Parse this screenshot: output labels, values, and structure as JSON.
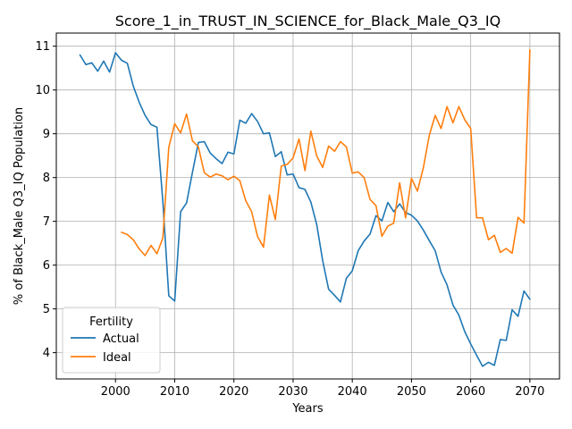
{
  "chart_data": {
    "type": "line",
    "title": "Score_1_in_TRUST_IN_SCIENCE_for_Black_Male_Q3_IQ",
    "xlabel": "Years",
    "ylabel": "% of Black_Male Q3_IQ Population",
    "xlim": [
      1990,
      2075
    ],
    "ylim": [
      3.4,
      11.3
    ],
    "xticks": [
      2000,
      2010,
      2020,
      2030,
      2040,
      2050,
      2060,
      2070
    ],
    "yticks": [
      4,
      5,
      6,
      7,
      8,
      9,
      10,
      11
    ],
    "grid": true,
    "legend": {
      "title": "Fertility",
      "position": "lower-left"
    },
    "series": [
      {
        "name": "Actual",
        "color": "#1f77b4",
        "x": [
          1994,
          1995,
          1996,
          1997,
          1998,
          1999,
          2000,
          2001,
          2002,
          2003,
          2004,
          2005,
          2006,
          2007,
          2008,
          2009,
          2010,
          2011,
          2012,
          2013,
          2014,
          2015,
          2016,
          2017,
          2018,
          2019,
          2020,
          2021,
          2022,
          2023,
          2024,
          2025,
          2026,
          2027,
          2028,
          2029,
          2030,
          2031,
          2032,
          2033,
          2034,
          2035,
          2036,
          2037,
          2038,
          2039,
          2040,
          2041,
          2042,
          2043,
          2044,
          2045,
          2046,
          2047,
          2048,
          2049,
          2050,
          2051,
          2052,
          2053,
          2054,
          2055,
          2056,
          2057,
          2058,
          2059,
          2060,
          2061,
          2062,
          2063,
          2064,
          2065,
          2066,
          2067,
          2068,
          2069,
          2070
        ],
        "values": [
          10.8,
          10.58,
          10.62,
          10.43,
          10.66,
          10.41,
          10.85,
          10.68,
          10.61,
          10.09,
          9.72,
          9.42,
          9.21,
          9.15,
          7.45,
          5.3,
          5.18,
          7.22,
          7.42,
          8.12,
          8.8,
          8.82,
          8.56,
          8.43,
          8.32,
          8.58,
          8.54,
          9.31,
          9.24,
          9.46,
          9.28,
          9.0,
          9.02,
          8.48,
          8.59,
          8.06,
          8.08,
          7.77,
          7.73,
          7.44,
          6.92,
          6.1,
          5.45,
          5.31,
          5.16,
          5.7,
          5.87,
          6.33,
          6.55,
          6.71,
          7.13,
          7.01,
          7.43,
          7.22,
          7.4,
          7.2,
          7.14,
          7.01,
          6.8,
          6.56,
          6.33,
          5.84,
          5.55,
          5.09,
          4.86,
          4.48,
          4.2,
          3.94,
          3.69,
          3.78,
          3.71,
          4.3,
          4.28,
          4.98,
          4.83,
          5.41,
          5.22
        ]
      },
      {
        "name": "Ideal",
        "color": "#ff7f0e",
        "x": [
          2001,
          2002,
          2003,
          2004,
          2005,
          2006,
          2007,
          2008,
          2009,
          2010,
          2011,
          2012,
          2013,
          2014,
          2015,
          2016,
          2017,
          2018,
          2019,
          2020,
          2021,
          2022,
          2023,
          2024,
          2025,
          2026,
          2027,
          2028,
          2029,
          2030,
          2031,
          2032,
          2033,
          2034,
          2035,
          2036,
          2037,
          2038,
          2039,
          2040,
          2041,
          2042,
          2043,
          2044,
          2045,
          2046,
          2047,
          2048,
          2049,
          2050,
          2051,
          2052,
          2053,
          2054,
          2055,
          2056,
          2057,
          2058,
          2059,
          2060,
          2061,
          2062,
          2063,
          2064,
          2065,
          2066,
          2067,
          2068,
          2069,
          2070
        ],
        "values": [
          6.75,
          6.7,
          6.58,
          6.37,
          6.22,
          6.45,
          6.26,
          6.62,
          8.69,
          9.23,
          9.02,
          9.45,
          8.84,
          8.7,
          8.11,
          8.01,
          8.08,
          8.04,
          7.95,
          8.03,
          7.93,
          7.47,
          7.22,
          6.65,
          6.41,
          7.6,
          7.04,
          8.26,
          8.3,
          8.45,
          8.88,
          8.16,
          9.06,
          8.49,
          8.23,
          8.72,
          8.6,
          8.82,
          8.7,
          8.1,
          8.13,
          8.0,
          7.5,
          7.36,
          6.66,
          6.89,
          6.96,
          7.88,
          7.08,
          7.98,
          7.69,
          8.22,
          8.96,
          9.42,
          9.12,
          9.62,
          9.25,
          9.62,
          9.32,
          9.12,
          7.08,
          7.08,
          6.58,
          6.68,
          6.29,
          6.38,
          6.27,
          7.09,
          6.96,
          10.92
        ]
      }
    ]
  }
}
